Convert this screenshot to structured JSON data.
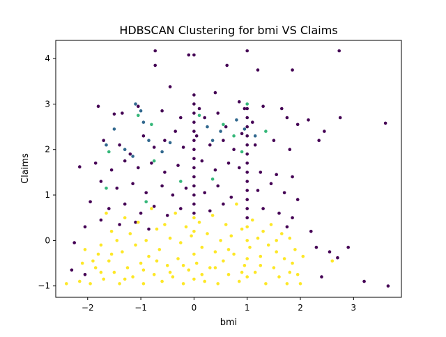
{
  "chart_data": {
    "type": "scatter",
    "title": "HDBSCAN Clustering for bmi VS Claims",
    "xlabel": "bmi",
    "ylabel": "Claims",
    "xlim": [
      -2.6,
      3.9
    ],
    "ylim": [
      -1.25,
      4.4
    ],
    "xticks": [
      -2,
      -1,
      0,
      1,
      2,
      3
    ],
    "yticks": [
      -1,
      0,
      1,
      2,
      3,
      4
    ],
    "grid": false,
    "legend": "none",
    "colors": {
      "noise": "#440154",
      "cluster_0": "#31688e",
      "cluster_1": "#35b779",
      "cluster_2": "#fde725",
      "axes": "#000000",
      "background": "#ffffff"
    },
    "series": [
      {
        "cluster": "noise",
        "color": "#440154",
        "points": [
          [
            -0.73,
            4.17
          ],
          [
            -0.1,
            4.08
          ],
          [
            0.0,
            4.08
          ],
          [
            1.0,
            4.17
          ],
          [
            2.73,
            4.17
          ],
          [
            -0.73,
            3.85
          ],
          [
            0.62,
            3.85
          ],
          [
            1.2,
            3.75
          ],
          [
            1.85,
            3.75
          ],
          [
            -0.45,
            3.38
          ],
          [
            0.4,
            3.25
          ],
          [
            0.85,
            3.05
          ],
          [
            -1.8,
            2.95
          ],
          [
            -1.5,
            2.78
          ],
          [
            -1.35,
            2.8
          ],
          [
            -1.05,
            2.95
          ],
          [
            -0.6,
            2.85
          ],
          [
            -0.25,
            2.7
          ],
          [
            0.1,
            2.9
          ],
          [
            0.2,
            2.7
          ],
          [
            0.45,
            2.8
          ],
          [
            0.6,
            2.5
          ],
          [
            0.95,
            2.9
          ],
          [
            1.1,
            2.6
          ],
          [
            1.3,
            2.95
          ],
          [
            1.65,
            2.9
          ],
          [
            1.75,
            2.7
          ],
          [
            1.95,
            2.55
          ],
          [
            2.15,
            2.65
          ],
          [
            2.45,
            2.4
          ],
          [
            2.75,
            2.7
          ],
          [
            3.6,
            2.58
          ],
          [
            -1.7,
            2.2
          ],
          [
            -1.4,
            2.1
          ],
          [
            -1.2,
            1.9
          ],
          [
            -0.95,
            2.3
          ],
          [
            -0.75,
            2.05
          ],
          [
            -0.55,
            2.2
          ],
          [
            -0.35,
            2.4
          ],
          [
            -0.2,
            2.05
          ],
          [
            0.05,
            2.3
          ],
          [
            0.3,
            2.1
          ],
          [
            0.55,
            2.2
          ],
          [
            0.75,
            2.0
          ],
          [
            0.9,
            2.35
          ],
          [
            1.15,
            2.1
          ],
          [
            1.5,
            2.2
          ],
          [
            1.8,
            2.0
          ],
          [
            2.35,
            2.2
          ],
          [
            -2.15,
            1.62
          ],
          [
            -1.85,
            1.7
          ],
          [
            -1.55,
            1.55
          ],
          [
            -1.3,
            1.75
          ],
          [
            -1.05,
            1.6
          ],
          [
            -0.8,
            1.7
          ],
          [
            -0.55,
            1.5
          ],
          [
            -0.3,
            1.65
          ],
          [
            0.15,
            1.75
          ],
          [
            0.4,
            1.55
          ],
          [
            0.65,
            1.7
          ],
          [
            0.85,
            1.6
          ],
          [
            1.25,
            1.5
          ],
          [
            1.55,
            1.45
          ],
          [
            1.85,
            1.4
          ],
          [
            -1.75,
            1.3
          ],
          [
            -1.45,
            1.15
          ],
          [
            -1.15,
            1.25
          ],
          [
            -0.9,
            1.05
          ],
          [
            -0.6,
            1.2
          ],
          [
            -0.4,
            1.0
          ],
          [
            -0.15,
            1.15
          ],
          [
            0.2,
            1.05
          ],
          [
            0.45,
            1.2
          ],
          [
            0.7,
            0.95
          ],
          [
            1.2,
            1.1
          ],
          [
            1.45,
            1.25
          ],
          [
            1.7,
            1.05
          ],
          [
            1.95,
            0.9
          ],
          [
            -1.95,
            0.85
          ],
          [
            -1.6,
            0.7
          ],
          [
            -1.3,
            0.8
          ],
          [
            -1.0,
            0.6
          ],
          [
            -0.75,
            0.75
          ],
          [
            -0.5,
            0.55
          ],
          [
            -0.25,
            0.7
          ],
          [
            0.3,
            0.65
          ],
          [
            0.55,
            0.8
          ],
          [
            1.3,
            0.7
          ],
          [
            1.6,
            0.6
          ],
          [
            1.85,
            0.5
          ],
          [
            -2.05,
            0.3
          ],
          [
            -1.75,
            0.45
          ],
          [
            -1.4,
            0.35
          ],
          [
            -1.1,
            0.4
          ],
          [
            -0.85,
            0.25
          ],
          [
            1.75,
            0.3
          ],
          [
            2.2,
            0.2
          ],
          [
            -2.25,
            -0.05
          ],
          [
            2.3,
            -0.15
          ],
          [
            2.55,
            -0.25
          ],
          [
            2.9,
            -0.15
          ],
          [
            2.7,
            -0.38
          ],
          [
            -2.3,
            -0.65
          ],
          [
            -2.05,
            -0.75
          ],
          [
            2.4,
            -0.8
          ],
          [
            3.2,
            -0.9
          ],
          [
            3.65,
            -1.0
          ],
          [
            0.0,
            3.2
          ],
          [
            0.0,
            3.0
          ],
          [
            0.0,
            2.8
          ],
          [
            0.0,
            2.6
          ],
          [
            0.0,
            2.4
          ],
          [
            0.0,
            2.2
          ],
          [
            0.0,
            2.0
          ],
          [
            0.0,
            1.8
          ],
          [
            0.0,
            1.6
          ],
          [
            0.0,
            1.4
          ],
          [
            0.0,
            1.2
          ],
          [
            0.0,
            1.0
          ],
          [
            0.0,
            0.8
          ],
          [
            0.0,
            0.6
          ],
          [
            1.0,
            2.9
          ],
          [
            1.0,
            2.7
          ],
          [
            1.0,
            2.5
          ],
          [
            1.0,
            2.3
          ],
          [
            1.0,
            2.1
          ],
          [
            1.0,
            1.9
          ],
          [
            1.0,
            1.7
          ],
          [
            1.0,
            1.5
          ],
          [
            1.0,
            1.3
          ],
          [
            1.0,
            1.1
          ],
          [
            1.0,
            0.9
          ],
          [
            1.0,
            0.7
          ],
          [
            1.0,
            0.5
          ]
        ]
      },
      {
        "cluster": "cluster_0",
        "color": "#31688e",
        "points": [
          [
            -1.1,
            3.0
          ],
          [
            -1.0,
            2.85
          ],
          [
            -0.95,
            2.6
          ],
          [
            -1.5,
            2.45
          ],
          [
            -1.65,
            2.1
          ],
          [
            -1.3,
            2.0
          ],
          [
            -0.85,
            2.2
          ],
          [
            -0.6,
            1.95
          ],
          [
            -0.45,
            2.15
          ],
          [
            0.25,
            2.5
          ],
          [
            0.35,
            2.2
          ],
          [
            0.5,
            2.4
          ],
          [
            0.8,
            2.65
          ],
          [
            0.95,
            2.45
          ],
          [
            1.15,
            2.3
          ],
          [
            -1.15,
            1.85
          ]
        ]
      },
      {
        "cluster": "cluster_1",
        "color": "#35b779",
        "points": [
          [
            -1.05,
            2.75
          ],
          [
            -0.8,
            2.55
          ],
          [
            -1.6,
            1.95
          ],
          [
            -0.75,
            1.75
          ],
          [
            -0.25,
            1.3
          ],
          [
            0.55,
            2.55
          ],
          [
            0.75,
            2.3
          ],
          [
            0.9,
            1.95
          ],
          [
            1.0,
            3.0
          ],
          [
            1.35,
            2.4
          ],
          [
            -1.65,
            1.15
          ],
          [
            -0.9,
            0.85
          ],
          [
            0.1,
            2.75
          ],
          [
            0.35,
            1.35
          ]
        ]
      },
      {
        "cluster": "cluster_2",
        "color": "#fde725",
        "points": [
          [
            -2.4,
            -0.95
          ],
          [
            -2.15,
            -0.9
          ],
          [
            -2.1,
            -0.5
          ],
          [
            -2.05,
            -0.2
          ],
          [
            -1.95,
            -0.95
          ],
          [
            -1.85,
            -0.6
          ],
          [
            -1.8,
            -0.3
          ],
          [
            -1.75,
            -0.1
          ],
          [
            -1.7,
            -0.85
          ],
          [
            -1.65,
            0.6
          ],
          [
            -1.6,
            -0.45
          ],
          [
            -1.55,
            0.2
          ],
          [
            -1.5,
            -0.7
          ],
          [
            -1.45,
            0.0
          ],
          [
            -1.4,
            -0.95
          ],
          [
            -1.35,
            -0.25
          ],
          [
            -1.3,
            0.5
          ],
          [
            -1.25,
            -0.6
          ],
          [
            -1.2,
            0.15
          ],
          [
            -1.15,
            -0.8
          ],
          [
            -1.1,
            -0.1
          ],
          [
            -1.05,
            0.4
          ],
          [
            -1.0,
            -0.5
          ],
          [
            -0.95,
            -0.95
          ],
          [
            -0.9,
            0.0
          ],
          [
            -0.85,
            -0.35
          ],
          [
            -0.8,
            0.7
          ],
          [
            -0.75,
            -0.75
          ],
          [
            -0.7,
            0.25
          ],
          [
            -0.65,
            -0.2
          ],
          [
            -0.6,
            -0.9
          ],
          [
            -0.55,
            0.35
          ],
          [
            -0.5,
            -0.55
          ],
          [
            -0.45,
            0.05
          ],
          [
            -0.4,
            -0.8
          ],
          [
            -0.35,
            0.6
          ],
          [
            -0.3,
            -0.4
          ],
          [
            -0.25,
            -0.05
          ],
          [
            -0.2,
            -0.95
          ],
          [
            -0.15,
            0.3
          ],
          [
            -0.1,
            -0.65
          ],
          [
            -0.05,
            0.1
          ],
          [
            0.0,
            -0.3
          ],
          [
            0.0,
            0.2
          ],
          [
            0.0,
            -0.85
          ],
          [
            0.0,
            0.5
          ],
          [
            0.05,
            -0.5
          ],
          [
            0.1,
            0.4
          ],
          [
            0.15,
            -0.15
          ],
          [
            0.2,
            -0.9
          ],
          [
            0.25,
            0.15
          ],
          [
            0.3,
            -0.6
          ],
          [
            0.35,
            0.55
          ],
          [
            0.4,
            -0.25
          ],
          [
            0.45,
            -0.95
          ],
          [
            0.5,
            0.0
          ],
          [
            0.55,
            -0.45
          ],
          [
            0.6,
            0.35
          ],
          [
            0.65,
            -0.75
          ],
          [
            0.7,
            0.1
          ],
          [
            0.75,
            -0.3
          ],
          [
            0.8,
            0.8
          ],
          [
            0.85,
            -0.9
          ],
          [
            0.9,
            0.25
          ],
          [
            0.95,
            -0.55
          ],
          [
            1.0,
            0.0
          ],
          [
            1.0,
            -0.4
          ],
          [
            1.0,
            -0.8
          ],
          [
            1.0,
            0.3
          ],
          [
            1.05,
            -0.15
          ],
          [
            1.1,
            0.45
          ],
          [
            1.15,
            -0.7
          ],
          [
            1.2,
            0.05
          ],
          [
            1.25,
            -0.35
          ],
          [
            1.3,
            0.2
          ],
          [
            1.35,
            -0.95
          ],
          [
            1.4,
            -0.1
          ],
          [
            1.45,
            0.35
          ],
          [
            1.5,
            -0.6
          ],
          [
            1.55,
            0.0
          ],
          [
            1.6,
            -0.8
          ],
          [
            1.65,
            0.15
          ],
          [
            1.7,
            -0.4
          ],
          [
            1.75,
            -0.95
          ],
          [
            1.8,
            0.05
          ],
          [
            1.85,
            -0.5
          ],
          [
            1.9,
            -0.2
          ],
          [
            1.95,
            -0.75
          ],
          [
            2.0,
            -0.95
          ],
          [
            2.05,
            -0.35
          ],
          [
            -1.9,
            -0.45
          ],
          [
            -1.75,
            -0.7
          ],
          [
            -1.55,
            -0.3
          ],
          [
            -1.3,
            -0.85
          ],
          [
            -0.95,
            -0.65
          ],
          [
            -0.7,
            -0.45
          ],
          [
            -0.45,
            -0.7
          ],
          [
            -0.2,
            -0.55
          ],
          [
            0.15,
            -0.75
          ],
          [
            0.4,
            -0.6
          ],
          [
            0.65,
            -0.2
          ],
          [
            0.9,
            -0.7
          ],
          [
            1.25,
            -0.55
          ],
          [
            1.55,
            -0.25
          ],
          [
            1.8,
            -0.7
          ],
          [
            2.6,
            -0.45
          ]
        ]
      }
    ]
  }
}
